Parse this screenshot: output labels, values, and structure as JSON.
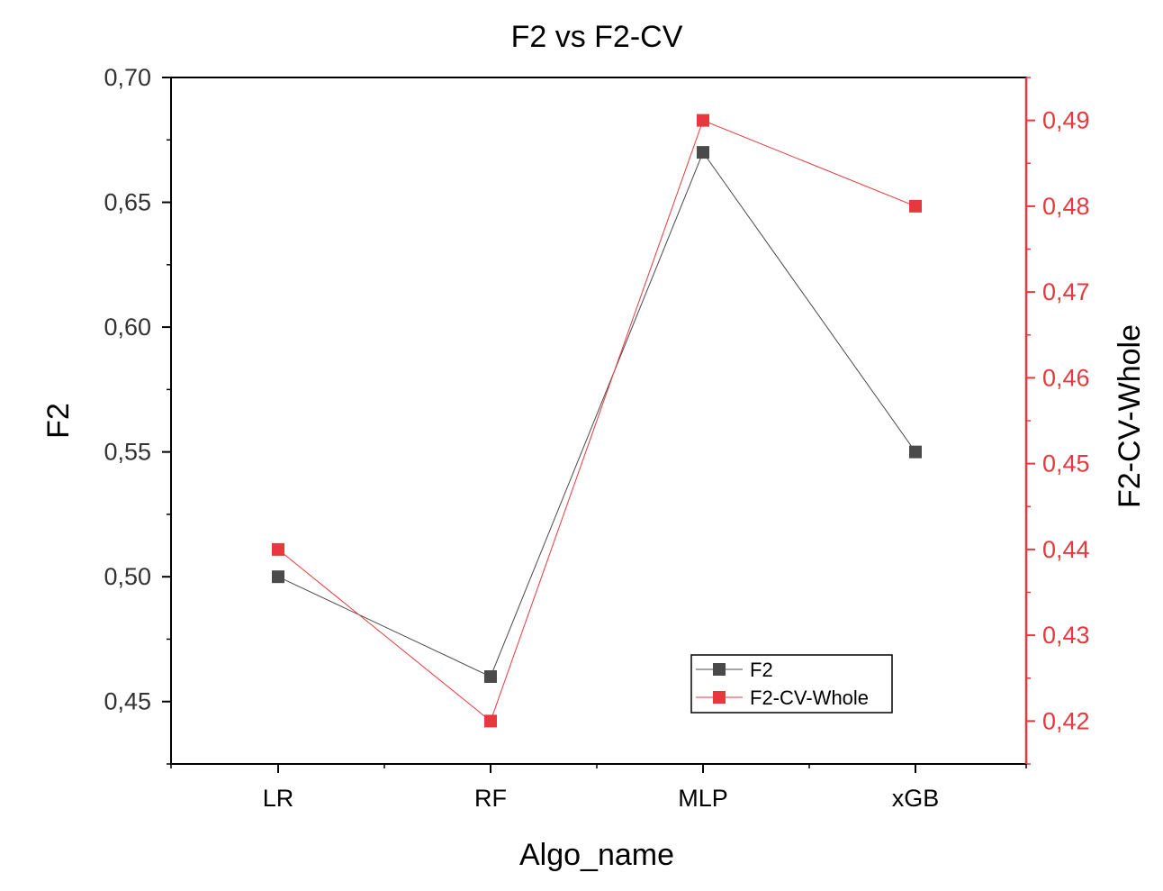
{
  "chart_data": {
    "type": "line",
    "title": "F2 vs F2-CV",
    "xlabel": "Algo_name",
    "ylabel": "F2",
    "y2label": "F2-CV-Whole",
    "categories": [
      "LR",
      "RF",
      "MLP",
      "xGB"
    ],
    "ylim": [
      0.425,
      0.7
    ],
    "y2lim": [
      0.415,
      0.495
    ],
    "yticks": [
      "0,45",
      "0,50",
      "0,55",
      "0,60",
      "0,65",
      "0,70"
    ],
    "y2ticks": [
      "0,42",
      "0,43",
      "0,44",
      "0,45",
      "0,46",
      "0,47",
      "0,48",
      "0,49"
    ],
    "series": [
      {
        "name": "F2",
        "axis": "left",
        "color": "#4a4a4a",
        "values": [
          0.5,
          0.46,
          0.67,
          0.55
        ]
      },
      {
        "name": "F2-CV-Whole",
        "axis": "right",
        "color": "#e8383d",
        "values": [
          0.44,
          0.42,
          0.49,
          0.48
        ]
      }
    ],
    "legend_position": "bottom-right",
    "grid": false
  }
}
